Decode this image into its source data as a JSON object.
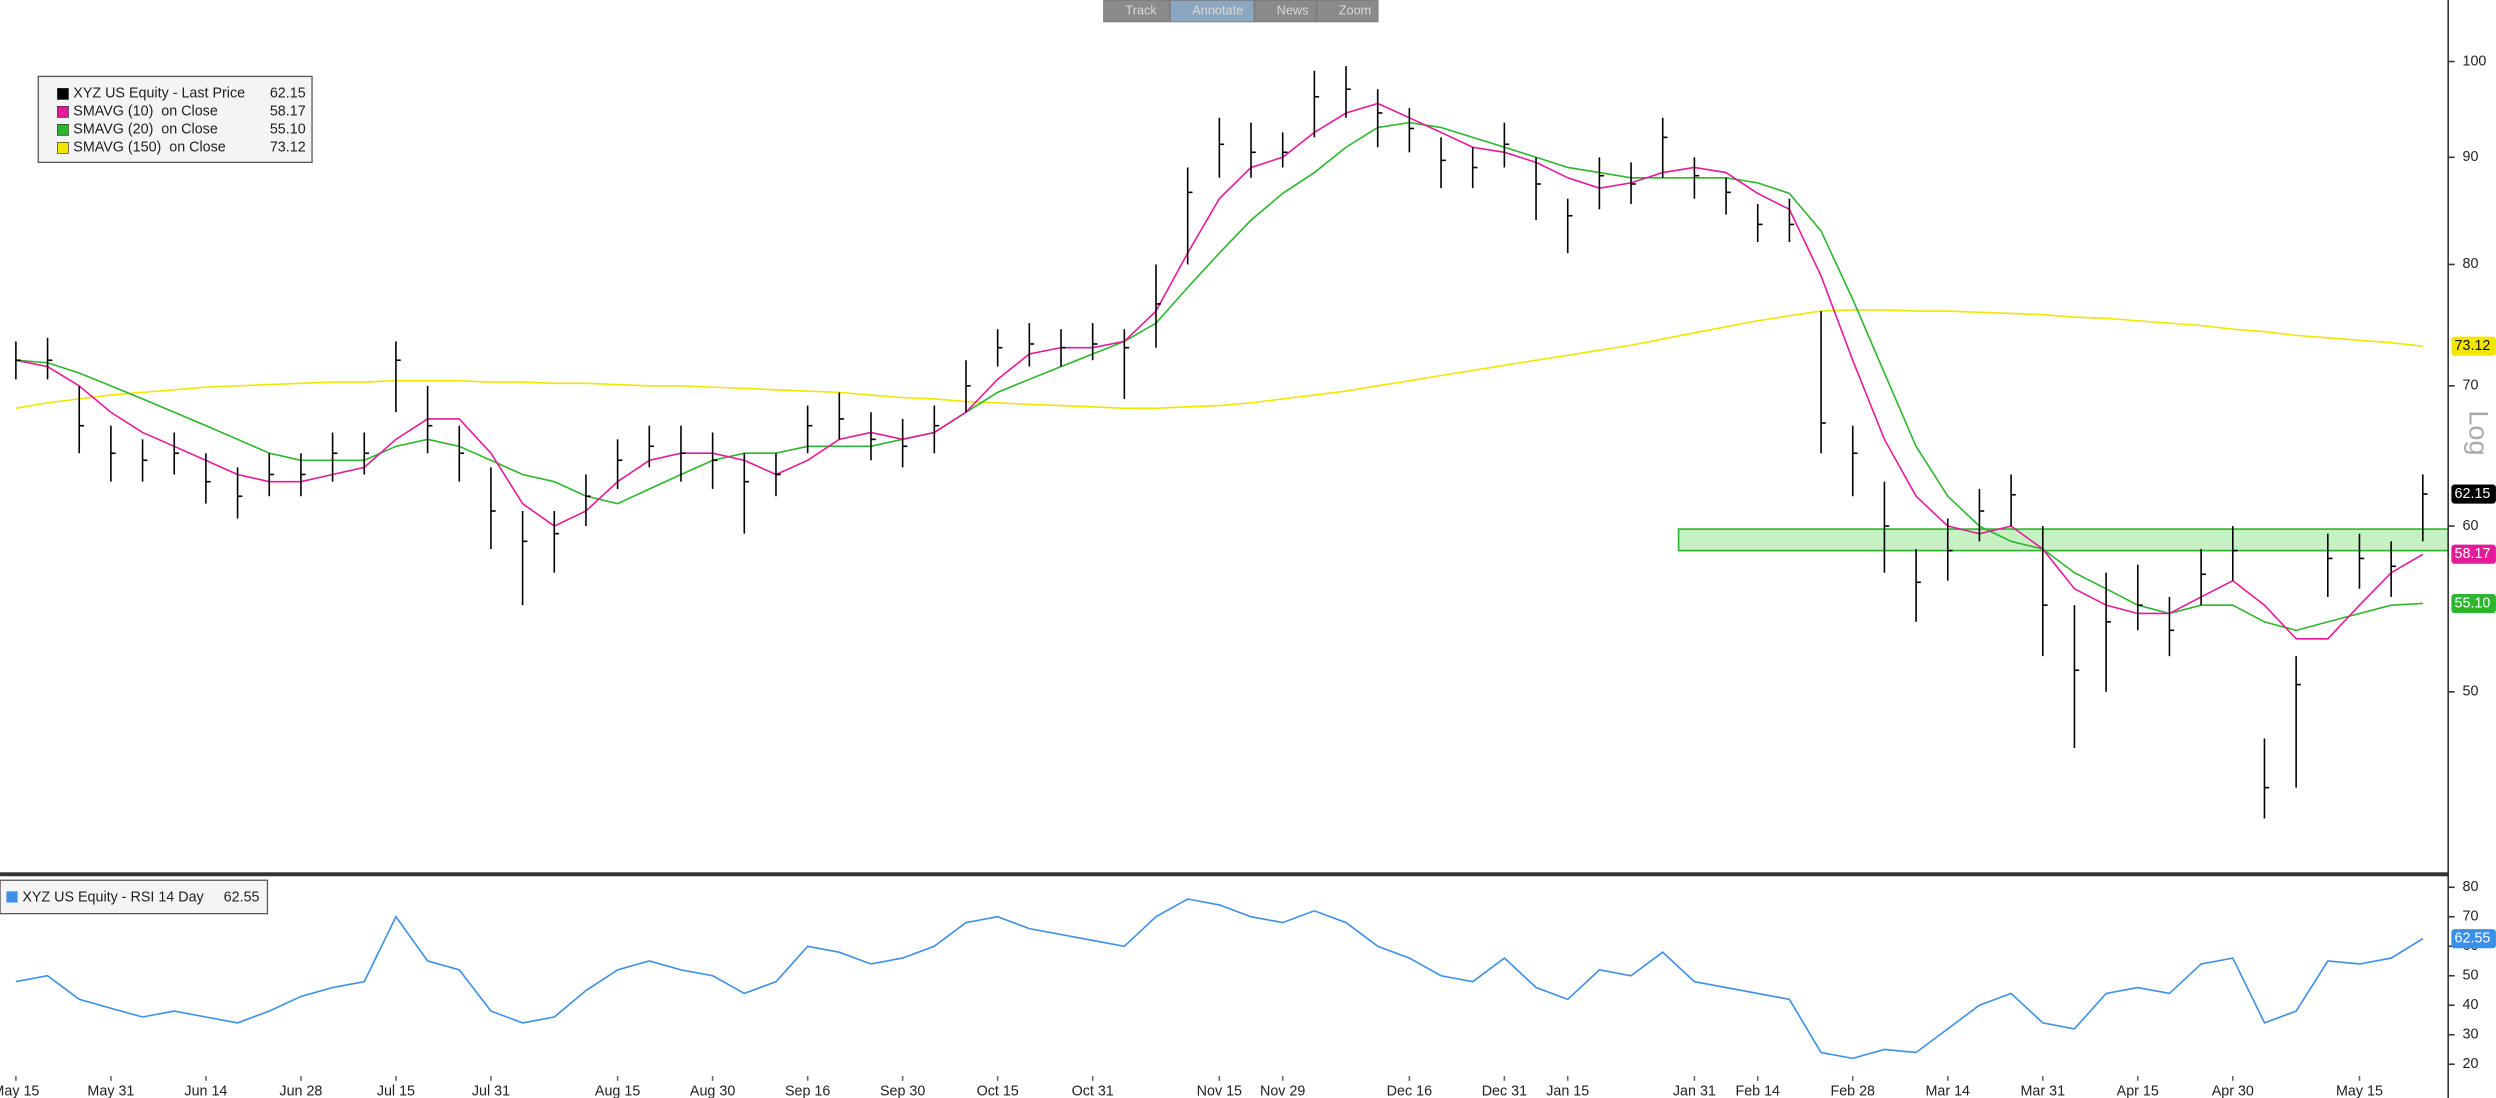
{
  "toolbar": [
    "Track",
    "Annotate",
    "News",
    "Zoom"
  ],
  "chart_data": [
    {
      "type": "ohlc",
      "scale": "log",
      "ylim": [
        41,
        107
      ],
      "yticks": [
        50,
        60,
        70,
        80,
        90,
        100
      ],
      "y_axis_label": "Log",
      "highlight": {
        "ylim": [
          58.4,
          59.8
        ],
        "start": 53,
        "color": "#7fe07a"
      },
      "series": [
        {
          "name": "XYZ US Equity - Last Price",
          "color": "#000000",
          "last_label": "62.15",
          "high": [
            73.5,
            73.8,
            70,
            67,
            66,
            66.5,
            65,
            64,
            65,
            65,
            66.5,
            66.5,
            73.5,
            70,
            67,
            64,
            61,
            61,
            63.5,
            66,
            67,
            67,
            66.5,
            65,
            65,
            68.5,
            69.5,
            68,
            67.5,
            68.5,
            72,
            74.5,
            75,
            74.5,
            75,
            74.5,
            80,
            89,
            94,
            93.5,
            92.5,
            99,
            99.5,
            97,
            95,
            92,
            91,
            93.5,
            90,
            86,
            90,
            89.5,
            94,
            90,
            88,
            85.5,
            86,
            76,
            67,
            63,
            58.5,
            60.5,
            62.5,
            63.5,
            60,
            55,
            57,
            57.5,
            55.5,
            58.5,
            60,
            47.5,
            52,
            59.5,
            59.5,
            59,
            63.5
          ],
          "low": [
            70.5,
            70.5,
            65,
            63,
            63,
            63.5,
            61.5,
            60.5,
            62,
            62,
            63,
            63.5,
            68,
            65,
            63,
            58.5,
            55,
            57,
            60,
            62.5,
            64,
            63,
            62.5,
            59.5,
            62,
            65,
            66,
            64.5,
            64,
            65,
            68,
            71.5,
            71.5,
            71.5,
            72,
            69,
            73,
            80,
            88,
            88,
            89,
            92,
            94,
            91,
            90.5,
            87,
            87,
            89,
            84,
            81,
            85,
            85.5,
            88,
            86,
            84.5,
            82,
            82,
            65,
            62,
            57,
            54,
            56.5,
            59,
            60,
            52,
            47,
            50,
            53.5,
            52,
            55,
            56.5,
            43.5,
            45,
            55.5,
            56,
            55.5,
            59
          ],
          "values": [
            72,
            72,
            67,
            65,
            64.5,
            65,
            63,
            62,
            63.5,
            63.5,
            65,
            65,
            72,
            67,
            65,
            61,
            59,
            59.5,
            62,
            64.5,
            65.5,
            65,
            64.5,
            63,
            63.5,
            67,
            67.5,
            66,
            65.5,
            67,
            70,
            73,
            73.3,
            73,
            73.3,
            73,
            76.6,
            86.6,
            91.3,
            90.5,
            90.5,
            96.2,
            97,
            94.5,
            92.9,
            89.7,
            89,
            91.3,
            87.4,
            84.4,
            88.2,
            87.4,
            92,
            88.2,
            86.6,
            83.6,
            83.6,
            67.2,
            65,
            60,
            56.4,
            58.4,
            61,
            62.1,
            55,
            51.2,
            54,
            55,
            53.5,
            56.9,
            58.4,
            45,
            50.4,
            57.9,
            57.9,
            57.4,
            62.15
          ]
        },
        {
          "name": "SMAVG (10)  on Close",
          "color": "#e6199a",
          "last_label": "58.17",
          "values": [
            72,
            71.5,
            70,
            68,
            66.5,
            65.5,
            64.5,
            63.5,
            63,
            63,
            63.5,
            64,
            66,
            67.5,
            67.5,
            65,
            61.5,
            60,
            61,
            63,
            64.5,
            65,
            65,
            64.5,
            63.5,
            64.5,
            66,
            66.5,
            66,
            66.5,
            68,
            70.5,
            72.5,
            73,
            73,
            73.5,
            76,
            81,
            86,
            89,
            90,
            92.5,
            94.5,
            95.5,
            94,
            92.5,
            91,
            90.5,
            89.5,
            88,
            87,
            87.5,
            88.5,
            89,
            88.5,
            86.5,
            85,
            79,
            72,
            66,
            62,
            60,
            59.5,
            60,
            58.5,
            56,
            55,
            54.5,
            54.5,
            55.5,
            56.5,
            55,
            53,
            53,
            55,
            57,
            58.17
          ]
        },
        {
          "name": "SMAVG (20)  on Close",
          "color": "#2db52d",
          "last_label": "55.10",
          "values": [
            72,
            71.8,
            71,
            70,
            69,
            68,
            67,
            66,
            65,
            64.5,
            64.5,
            64.5,
            65.5,
            66,
            65.5,
            64.5,
            63.5,
            63,
            62,
            61.5,
            62.5,
            63.5,
            64.5,
            65,
            65,
            65.5,
            65.5,
            65.5,
            66,
            66.5,
            68,
            69.5,
            70.5,
            71.5,
            72.5,
            73.5,
            75,
            78,
            81,
            84,
            86.5,
            88.5,
            91,
            93,
            93.5,
            93,
            92,
            91,
            90,
            89,
            88.5,
            88,
            88,
            88,
            88,
            87.5,
            86.5,
            83,
            77,
            71,
            65.5,
            62,
            60,
            59,
            58.5,
            57,
            56,
            55,
            54.5,
            55,
            55,
            54,
            53.5,
            54,
            54.5,
            55,
            55.1
          ]
        },
        {
          "name": "SMAVG (150)  on Close",
          "color": "#f2e600",
          "last_label": "73.12",
          "values": [
            68.3,
            68.7,
            69.0,
            69.3,
            69.5,
            69.7,
            69.9,
            70.0,
            70.1,
            70.2,
            70.3,
            70.3,
            70.4,
            70.4,
            70.4,
            70.3,
            70.3,
            70.2,
            70.2,
            70.1,
            70.0,
            70.0,
            69.9,
            69.8,
            69.7,
            69.6,
            69.5,
            69.3,
            69.1,
            69.0,
            68.8,
            68.7,
            68.6,
            68.5,
            68.4,
            68.3,
            68.3,
            68.4,
            68.5,
            68.7,
            69.0,
            69.3,
            69.6,
            70.0,
            70.4,
            70.8,
            71.2,
            71.6,
            72.0,
            72.4,
            72.8,
            73.2,
            73.7,
            74.2,
            74.7,
            75.2,
            75.6,
            76.0,
            76.1,
            76.1,
            76.0,
            76.0,
            75.9,
            75.8,
            75.7,
            75.5,
            75.4,
            75.2,
            75.0,
            74.8,
            74.5,
            74.3,
            74.0,
            73.8,
            73.6,
            73.4,
            73.12
          ]
        }
      ]
    },
    {
      "type": "line",
      "ylim": [
        16,
        84
      ],
      "yticks": [
        20,
        30,
        40,
        50,
        60,
        70,
        80
      ],
      "categories": [
        "May 15",
        null,
        null,
        "May 31",
        null,
        null,
        "Jun 14",
        null,
        null,
        "Jun 28",
        null,
        null,
        "Jul 15",
        null,
        null,
        "Jul 31",
        null,
        null,
        null,
        "Aug 15",
        null,
        null,
        "Aug 30",
        null,
        null,
        "Sep 16",
        null,
        null,
        "Sep 30",
        null,
        null,
        "Oct 15",
        null,
        null,
        "Oct 31",
        null,
        null,
        null,
        "Nov 15",
        null,
        "Nov 29",
        null,
        null,
        null,
        "Dec 16",
        null,
        null,
        "Dec 31",
        null,
        "Jan 15",
        null,
        null,
        null,
        "Jan 31",
        null,
        "Feb 14",
        null,
        null,
        "Feb 28",
        null,
        null,
        "Mar 14",
        null,
        null,
        "Mar 31",
        null,
        null,
        "Apr 15",
        null,
        null,
        "Apr 30",
        null,
        null,
        null,
        "May 15",
        null,
        null
      ],
      "series": [
        {
          "name": "XYZ US Equity - RSI 14 Day",
          "color": "#3b8fe6",
          "last_label": "62.55",
          "values": [
            48,
            50,
            42,
            39,
            36,
            38,
            36,
            34,
            38,
            43,
            46,
            48,
            70,
            55,
            52,
            38,
            34,
            36,
            45,
            52,
            55,
            52,
            50,
            44,
            48,
            60,
            58,
            54,
            56,
            60,
            68,
            70,
            66,
            64,
            62,
            60,
            70,
            76,
            74,
            70,
            68,
            72,
            68,
            60,
            56,
            50,
            48,
            56,
            46,
            42,
            52,
            50,
            58,
            48,
            46,
            44,
            42,
            24,
            22,
            25,
            24,
            32,
            40,
            44,
            34,
            32,
            44,
            46,
            44,
            54,
            56,
            34,
            38,
            55,
            54,
            56,
            62.55
          ]
        }
      ]
    }
  ]
}
